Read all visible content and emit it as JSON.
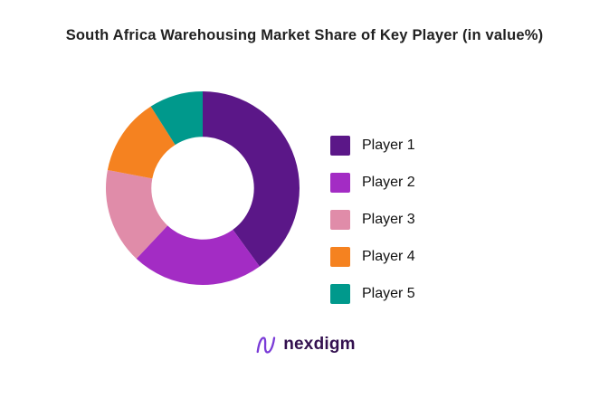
{
  "title": "South Africa Warehousing Market Share of Key Player (in value%)",
  "chart_data": {
    "type": "pie",
    "subtype": "donut",
    "title": "South Africa Warehousing Market Share of Key Player (in value%)",
    "categories": [
      "Player 1",
      "Player 2",
      "Player 3",
      "Player 4",
      "Player 5"
    ],
    "values": [
      40,
      22,
      16,
      13,
      9
    ],
    "unit": "value%",
    "colors": [
      "#5b1788",
      "#a32cc4",
      "#e08ca9",
      "#f58220",
      "#00998c"
    ],
    "start_angle_deg": 0,
    "direction": "clockwise",
    "legend_position": "right",
    "hole_ratio": 0.53,
    "data_labels": false
  },
  "logo": {
    "icon": "nexdigm-wave-icon",
    "text": "nexdigm",
    "text_color": "#33104f",
    "icon_color": "#7a3bd7"
  }
}
